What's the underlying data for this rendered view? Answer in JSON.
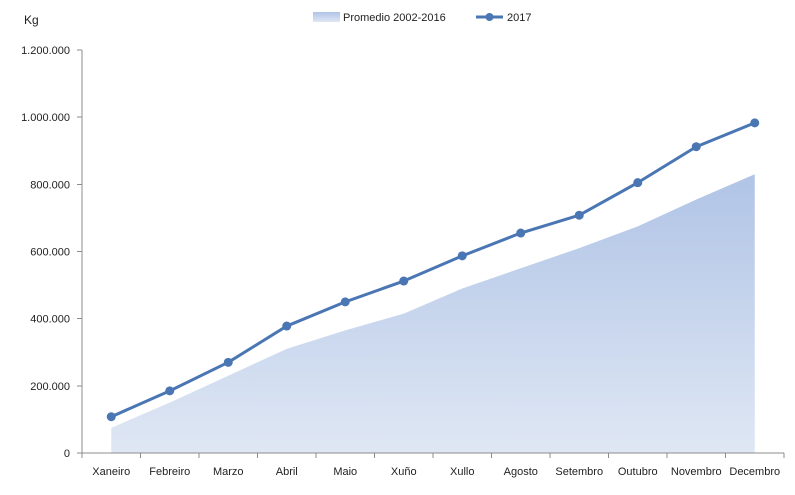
{
  "chart_data": {
    "type": "line",
    "title": "",
    "xlabel": "",
    "ylabel": "Kg",
    "ylim": [
      0,
      1200000
    ],
    "yticks": [
      0,
      200000,
      400000,
      600000,
      800000,
      1000000,
      1200000
    ],
    "ytick_labels": [
      "0",
      "200.000",
      "400.000",
      "600.000",
      "800.000",
      "1.000.000",
      "1.200.000"
    ],
    "grid": false,
    "legend_position": "top-center",
    "categories": [
      "Xaneiro",
      "Febreiro",
      "Marzo",
      "Abril",
      "Maio",
      "Xuño",
      "Xullo",
      "Agosto",
      "Setembro",
      "Outubro",
      "Novembro",
      "Decembro"
    ],
    "series": [
      {
        "name": "Promedio 2002-2016",
        "kind": "area",
        "color": "#b4c7e7",
        "values": [
          75000,
          150000,
          230000,
          310000,
          365000,
          415000,
          490000,
          550000,
          610000,
          675000,
          755000,
          830000
        ]
      },
      {
        "name": "2017",
        "kind": "line-markers",
        "color": "#4a76b4",
        "values": [
          108000,
          185000,
          270000,
          378000,
          450000,
          512000,
          587000,
          655000,
          708000,
          805000,
          912000,
          983000
        ]
      }
    ]
  }
}
